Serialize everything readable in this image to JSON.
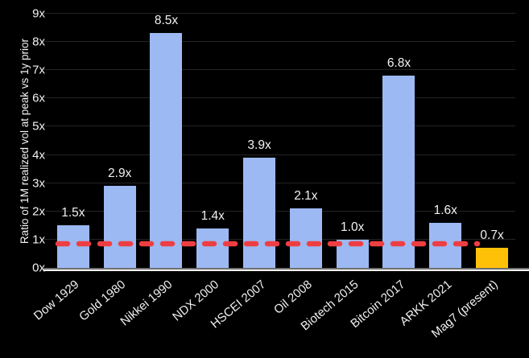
{
  "colors": {
    "background": "#000000",
    "bar": "#9CB9F3",
    "highlight_bar": "#FFC107",
    "ref_line": "#EF3E42",
    "gridline": "#242424",
    "text": "#F2F2F2",
    "baseline_gray": "#6F6F6F",
    "baseline_white": "#F4F4F4"
  },
  "chart_data": {
    "type": "bar",
    "title": "",
    "ylabel": "Ratio of 1M realized vol at peak vs 1y prior",
    "xlabel": "",
    "categories": [
      "Dow 1929",
      "Gold 1980",
      "Nikkei 1990",
      "NDX 2000",
      "HSCEI 2007",
      "Oil 2008",
      "Biotech 2015",
      "Bitcoin 2017",
      "ARKK 2021",
      "Mag7 (present)"
    ],
    "values": [
      1.5,
      2.9,
      8.5,
      1.4,
      3.9,
      2.1,
      1.0,
      6.8,
      1.6,
      0.7
    ],
    "value_labels": [
      "1.5x",
      "2.9x",
      "8.5x",
      "1.4x",
      "3.9x",
      "2.1x",
      "1.0x",
      "6.8x",
      "1.6x",
      "0.7x"
    ],
    "highlight_index": 9,
    "ylim": [
      0,
      9
    ],
    "yticks": [
      0,
      1,
      2,
      3,
      4,
      5,
      6,
      7,
      8,
      9
    ],
    "ytick_labels": [
      "0x",
      "1x",
      "2x",
      "3x",
      "4x",
      "5x",
      "6x",
      "7x",
      "8x",
      "9x"
    ],
    "ref_line": {
      "y": 1,
      "style": "dashed",
      "color": "#EF3E42",
      "span_fraction": 0.925
    },
    "grid": "horizontal",
    "legend": "none",
    "background": "black"
  }
}
